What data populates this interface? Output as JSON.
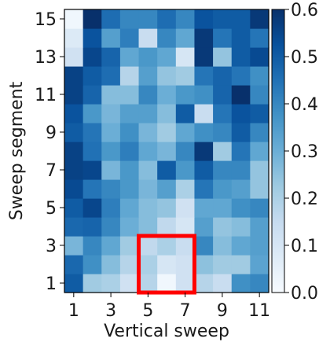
{
  "chart_data": {
    "type": "heatmap",
    "title": "",
    "xlabel": "Vertical sweep",
    "ylabel": "Sweep segment",
    "x_categories": [
      1,
      2,
      3,
      4,
      5,
      6,
      7,
      8,
      9,
      10,
      11
    ],
    "y_categories": [
      1,
      2,
      3,
      4,
      5,
      6,
      7,
      8,
      9,
      10,
      11,
      12,
      13,
      14,
      15
    ],
    "x_tick_labels": [
      "1",
      "3",
      "5",
      "7",
      "9",
      "11"
    ],
    "y_tick_labels": [
      "1",
      "3",
      "5",
      "7",
      "9",
      "11",
      "13",
      "15"
    ],
    "colorbar": {
      "min": 0.0,
      "max": 0.6,
      "tick_labels": [
        "0.0",
        "0.1",
        "0.2",
        "0.3",
        "0.4",
        "0.5",
        "0.6"
      ],
      "colormap": "Blues"
    },
    "values": [
      [
        0.5,
        0.22,
        0.2,
        0.12,
        0.18,
        0.02,
        0.12,
        0.18,
        0.14,
        0.38,
        0.4
      ],
      [
        0.47,
        0.38,
        0.26,
        0.18,
        0.2,
        0.1,
        0.12,
        0.25,
        0.22,
        0.22,
        0.33
      ],
      [
        0.28,
        0.4,
        0.32,
        0.22,
        0.16,
        0.2,
        0.14,
        0.4,
        0.26,
        0.32,
        0.34
      ],
      [
        0.47,
        0.48,
        0.4,
        0.3,
        0.26,
        0.16,
        0.1,
        0.34,
        0.24,
        0.26,
        0.34
      ],
      [
        0.5,
        0.55,
        0.42,
        0.32,
        0.26,
        0.24,
        0.12,
        0.32,
        0.32,
        0.38,
        0.4
      ],
      [
        0.54,
        0.44,
        0.4,
        0.36,
        0.28,
        0.34,
        0.2,
        0.44,
        0.36,
        0.34,
        0.24
      ],
      [
        0.56,
        0.55,
        0.28,
        0.36,
        0.26,
        0.5,
        0.36,
        0.5,
        0.4,
        0.4,
        0.24
      ],
      [
        0.56,
        0.45,
        0.36,
        0.42,
        0.32,
        0.28,
        0.4,
        0.58,
        0.22,
        0.44,
        0.32
      ],
      [
        0.5,
        0.44,
        0.3,
        0.38,
        0.28,
        0.22,
        0.32,
        0.38,
        0.4,
        0.5,
        0.4
      ],
      [
        0.52,
        0.36,
        0.28,
        0.34,
        0.34,
        0.26,
        0.5,
        0.14,
        0.44,
        0.52,
        0.5
      ],
      [
        0.56,
        0.48,
        0.26,
        0.26,
        0.4,
        0.3,
        0.36,
        0.38,
        0.48,
        0.6,
        0.4
      ],
      [
        0.56,
        0.5,
        0.46,
        0.18,
        0.34,
        0.24,
        0.22,
        0.44,
        0.48,
        0.44,
        0.38
      ],
      [
        0.12,
        0.55,
        0.48,
        0.32,
        0.36,
        0.32,
        0.1,
        0.58,
        0.24,
        0.5,
        0.54
      ],
      [
        0.08,
        0.52,
        0.34,
        0.42,
        0.14,
        0.4,
        0.32,
        0.58,
        0.44,
        0.5,
        0.44
      ],
      [
        0.02,
        0.6,
        0.46,
        0.4,
        0.4,
        0.46,
        0.4,
        0.52,
        0.5,
        0.5,
        0.58
      ]
    ],
    "highlight": {
      "x_range": [
        5,
        7
      ],
      "y_range": [
        1,
        3
      ],
      "color": "#ff0000"
    }
  }
}
